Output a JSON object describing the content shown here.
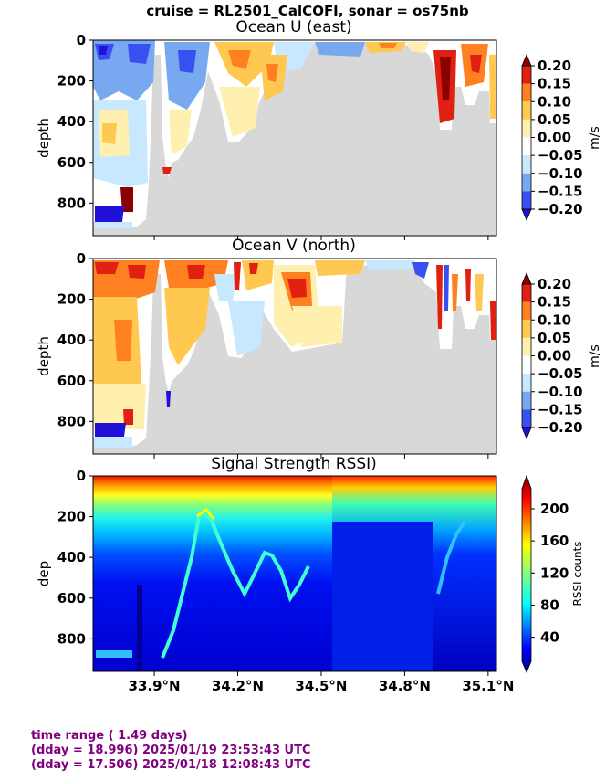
{
  "suptitle": "cruise = RL2501_CalCOFI,  sonar = os75nb",
  "footer": {
    "line1": "time range ( 1.49 days)",
    "line2": "(dday = 18.996) 2025/01/19 23:53:43 UTC",
    "line3": "(dday = 17.506) 2025/01/18 12:08:43 UTC"
  },
  "colors": {
    "land_gray": "#d8d8d8",
    "footer_purple": "#800080",
    "diverging_levels": [
      "#2010d8",
      "#3850f0",
      "#78a8f0",
      "#c8e8ff",
      "#ffffff",
      "#fff0b0",
      "#ffc850",
      "#ff8020",
      "#e02010",
      "#8b0000"
    ]
  },
  "chart_data": [
    {
      "type": "heatmap",
      "title": "Ocean U (east)",
      "ylabel": "depth",
      "ylim": [
        960,
        0
      ],
      "yticks": [
        "0",
        "200",
        "400",
        "600",
        "800"
      ],
      "xlim": [
        33.68,
        35.13
      ],
      "colorbar": {
        "label": "m/s",
        "ticks": [
          "0.20",
          "0.15",
          "0.10",
          "0.05",
          "0.00",
          "−0.05",
          "−0.10",
          "−0.15",
          "−0.20"
        ],
        "range": [
          -0.2,
          0.2
        ]
      },
      "bottom_depth_profile": {
        "lat": [
          33.68,
          33.75,
          33.83,
          33.9,
          33.93,
          33.98,
          34.02,
          34.05,
          34.1,
          34.15,
          34.2,
          34.25,
          34.35,
          34.45,
          34.55,
          34.65,
          34.75,
          34.85,
          34.92,
          34.96,
          35.0,
          35.05,
          35.13
        ],
        "depth": [
          780,
          880,
          950,
          110,
          560,
          700,
          700,
          500,
          480,
          150,
          440,
          500,
          460,
          50,
          30,
          30,
          40,
          20,
          440,
          440,
          420,
          420,
          400
        ]
      }
    },
    {
      "type": "heatmap",
      "title": "Ocean V (north)",
      "ylabel": "depth",
      "ylim": [
        960,
        0
      ],
      "yticks": [
        "0",
        "200",
        "400",
        "600",
        "800"
      ],
      "xlim": [
        33.68,
        35.13
      ],
      "colorbar": {
        "label": "m/s",
        "ticks": [
          "0.20",
          "0.15",
          "0.10",
          "0.05",
          "0.00",
          "−0.05",
          "−0.10",
          "−0.15",
          "−0.20"
        ],
        "range": [
          -0.2,
          0.2
        ]
      }
    },
    {
      "type": "heatmap",
      "title": "Signal Strength RSSI)",
      "ylabel": "dep",
      "ylim": [
        960,
        0
      ],
      "yticks": [
        "0",
        "200",
        "400",
        "600",
        "800"
      ],
      "xlabel": "",
      "xticks": [
        "33.9°N",
        "34.2°N",
        "34.5°N",
        "34.8°N",
        "35.1°N"
      ],
      "xtick_values": [
        33.9,
        34.2,
        34.5,
        34.8,
        35.1
      ],
      "xlim": [
        33.68,
        35.13
      ],
      "colorbar": {
        "label": "RSSI counts",
        "ticks": [
          "200",
          "160",
          "120",
          "80",
          "40"
        ],
        "tick_values": [
          200,
          160,
          120,
          80,
          40
        ],
        "range": [
          10,
          225
        ]
      }
    }
  ]
}
